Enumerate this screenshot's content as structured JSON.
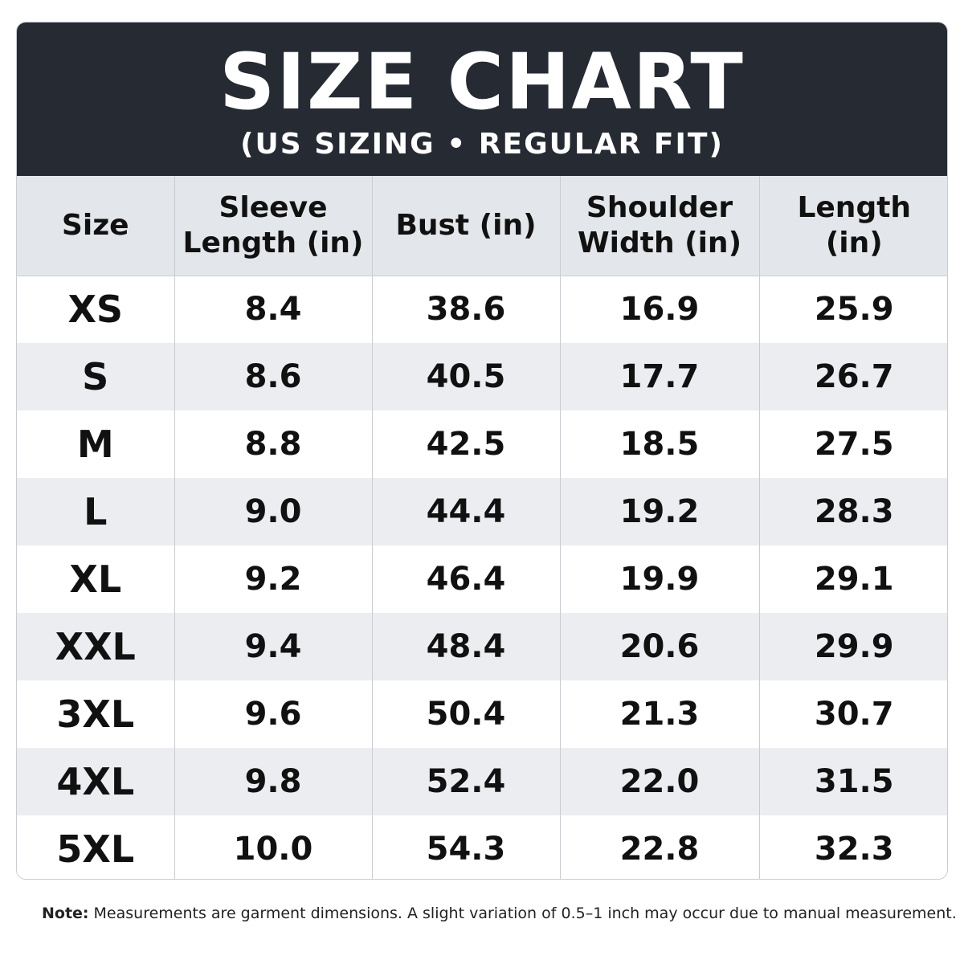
{
  "header": {
    "title": "SIZE CHART",
    "subtitle": "(US SIZING • REGULAR FIT)"
  },
  "table": {
    "columns": [
      "Size",
      "Sleeve Length (in)",
      "Bust (in)",
      "Shoulder Width (in)",
      "Length (in)"
    ],
    "rows": [
      [
        "XS",
        "8.4",
        "38.6",
        "16.9",
        "25.9"
      ],
      [
        "S",
        "8.6",
        "40.5",
        "17.7",
        "26.7"
      ],
      [
        "M",
        "8.8",
        "42.5",
        "18.5",
        "27.5"
      ],
      [
        "L",
        "9.0",
        "44.4",
        "19.2",
        "28.3"
      ],
      [
        "XL",
        "9.2",
        "46.4",
        "19.9",
        "29.1"
      ],
      [
        "XXL",
        "9.4",
        "48.4",
        "20.6",
        "29.9"
      ],
      [
        "3XL",
        "9.6",
        "50.4",
        "21.3",
        "30.7"
      ],
      [
        "4XL",
        "9.8",
        "52.4",
        "22.0",
        "31.5"
      ],
      [
        "5XL",
        "10.0",
        "54.3",
        "22.8",
        "32.3"
      ]
    ]
  },
  "note": {
    "label": "Note:",
    "text": "Measurements are garment dimensions. A slight variation of 0.5–1 inch may occur due to manual measurement."
  },
  "colors": {
    "banner": "#262a33",
    "header_row": "#e3e6ea",
    "alt_row": "#ebedf0",
    "border": "#c9ccd1"
  }
}
